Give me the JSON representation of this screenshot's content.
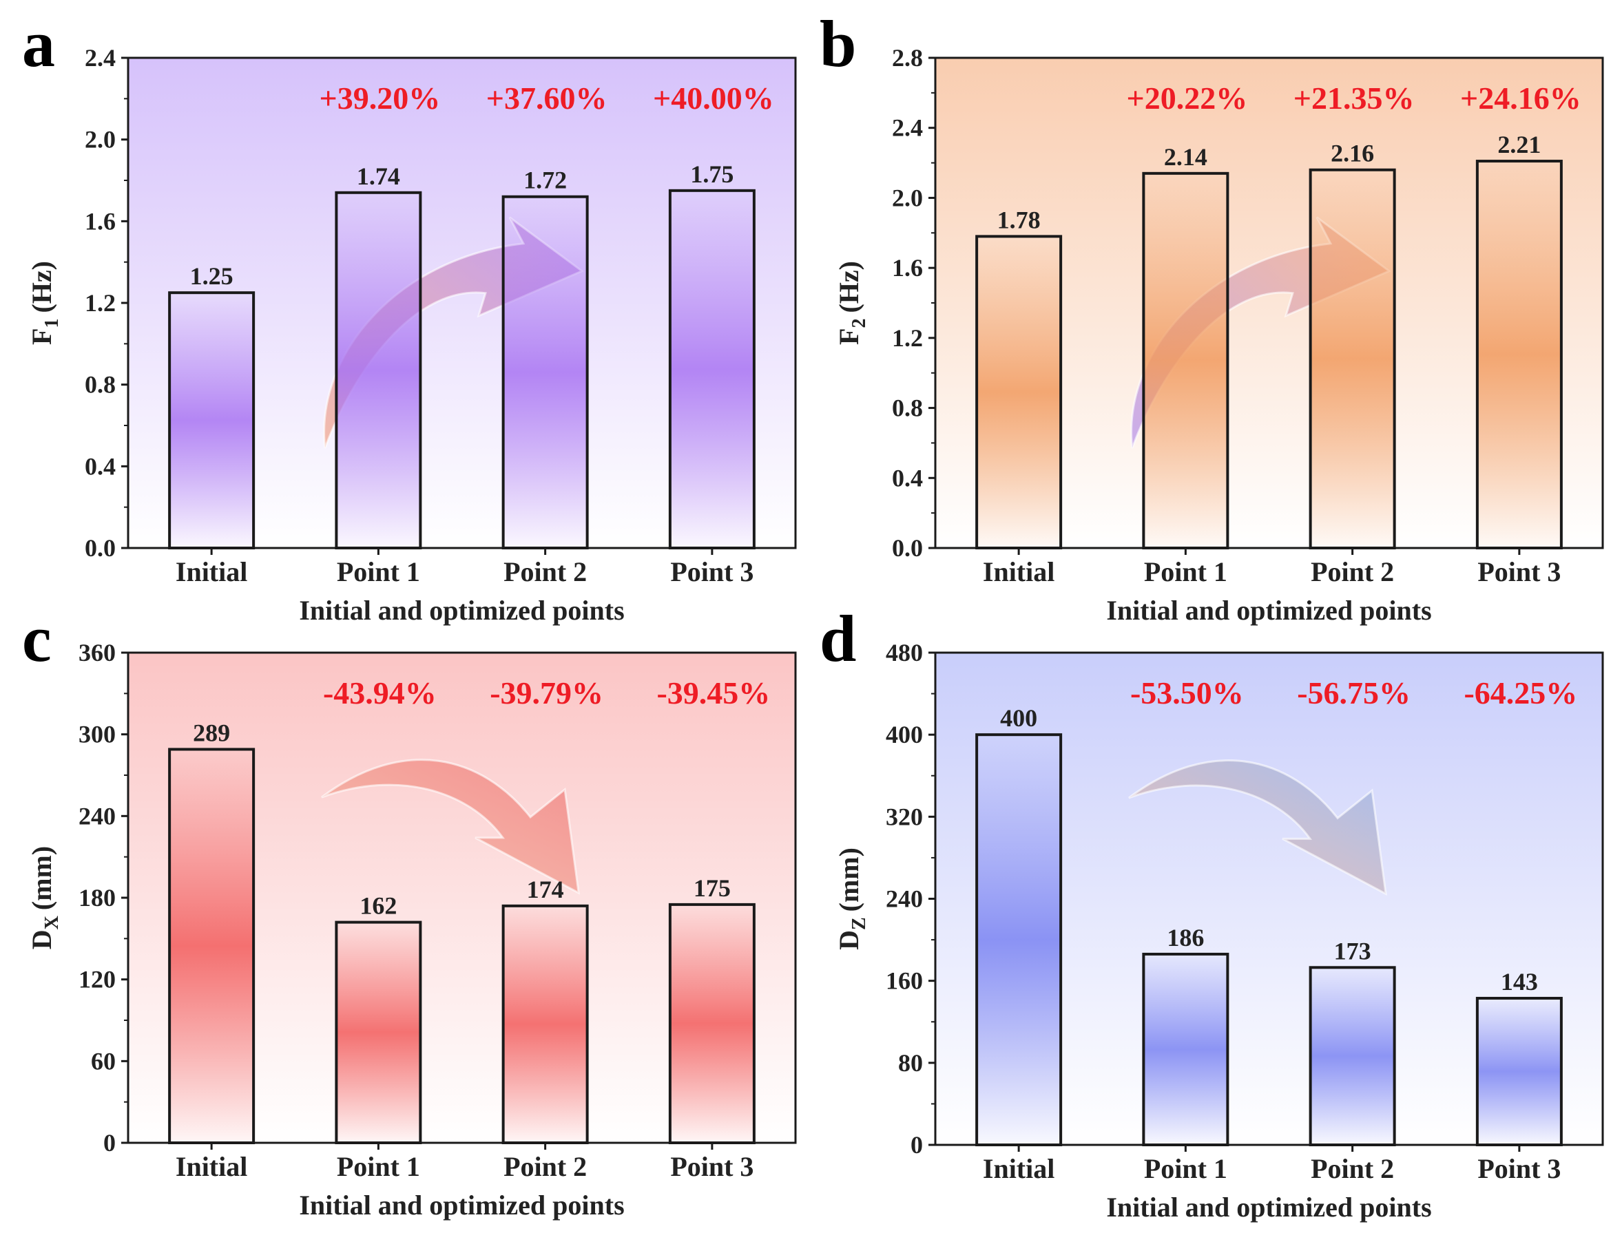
{
  "chart_data": [
    {
      "panel": "a",
      "type": "bar",
      "ylabel": "F",
      "ylabel_sub": "1",
      "ylabel_unit": "(Hz)",
      "xlabel": "Initial and optimized points",
      "categories": [
        "Initial",
        "Point 1",
        "Point 2",
        "Point 3"
      ],
      "values": [
        1.25,
        1.74,
        1.72,
        1.75
      ],
      "value_labels": [
        "1.25",
        "1.74",
        "1.72",
        "1.75"
      ],
      "change_labels": [
        "",
        "+39.20%",
        "+37.60%",
        "+40.00%"
      ],
      "ylim": [
        0,
        2.4
      ],
      "yticks": [
        "0.0",
        "0.4",
        "0.8",
        "1.2",
        "1.6",
        "2.0",
        "2.4"
      ],
      "trend": "up",
      "colors": {
        "bg_top": "#d6c2fb",
        "bg_bottom": "#ffffff",
        "bar": "#a873f2",
        "arrow_start": "#f2a98f",
        "arrow_end": "#b98ef0"
      }
    },
    {
      "panel": "b",
      "type": "bar",
      "ylabel": "F",
      "ylabel_sub": "2",
      "ylabel_unit": "(Hz)",
      "xlabel": "Initial and optimized points",
      "categories": [
        "Initial",
        "Point 1",
        "Point 2",
        "Point 3"
      ],
      "values": [
        1.78,
        2.14,
        2.16,
        2.21
      ],
      "value_labels": [
        "1.78",
        "2.14",
        "2.16",
        "2.21"
      ],
      "change_labels": [
        "",
        "+20.22%",
        "+21.35%",
        "+24.16%"
      ],
      "ylim": [
        0,
        2.8
      ],
      "yticks": [
        "0.0",
        "0.4",
        "0.8",
        "1.2",
        "1.6",
        "2.0",
        "2.4",
        "2.8"
      ],
      "trend": "up",
      "colors": {
        "bg_top": "#f9cdb0",
        "bg_bottom": "#ffffff",
        "bar": "#f19a5e",
        "arrow_start": "#b996ea",
        "arrow_end": "#f6b58e"
      }
    },
    {
      "panel": "c",
      "type": "bar",
      "ylabel": "D",
      "ylabel_sub": "X",
      "ylabel_unit": "(mm)",
      "xlabel": "Initial and optimized points",
      "categories": [
        "Initial",
        "Point 1",
        "Point 2",
        "Point 3"
      ],
      "values": [
        289,
        162,
        174,
        175
      ],
      "value_labels": [
        "289",
        "162",
        "174",
        "175"
      ],
      "change_labels": [
        "",
        "-43.94%",
        "-39.79%",
        "-39.45%"
      ],
      "ylim": [
        0,
        360
      ],
      "yticks": [
        "0",
        "60",
        "120",
        "180",
        "240",
        "300",
        "360"
      ],
      "trend": "down",
      "colors": {
        "bg_top": "#fbc5c5",
        "bg_bottom": "#ffffff",
        "bar": "#f25b5b",
        "arrow_start": "#f4b8a0",
        "arrow_end": "#f07f7f"
      }
    },
    {
      "panel": "d",
      "type": "bar",
      "ylabel": "D",
      "ylabel_sub": "Z",
      "ylabel_unit": "(mm)",
      "xlabel": "Initial and optimized points",
      "categories": [
        "Initial",
        "Point 1",
        "Point 2",
        "Point 3"
      ],
      "values": [
        400,
        186,
        173,
        143
      ],
      "value_labels": [
        "400",
        "186",
        "173",
        "143"
      ],
      "change_labels": [
        "",
        "-53.50%",
        "-56.75%",
        "-64.25%"
      ],
      "ylim": [
        0,
        480
      ],
      "yticks": [
        "0",
        "80",
        "160",
        "240",
        "320",
        "400",
        "480"
      ],
      "trend": "down",
      "colors": {
        "bg_top": "#c9cefb",
        "bg_bottom": "#ffffff",
        "bar": "#7a83f2",
        "arrow_start": "#f2b79e",
        "arrow_end": "#9ab6ea"
      }
    }
  ]
}
